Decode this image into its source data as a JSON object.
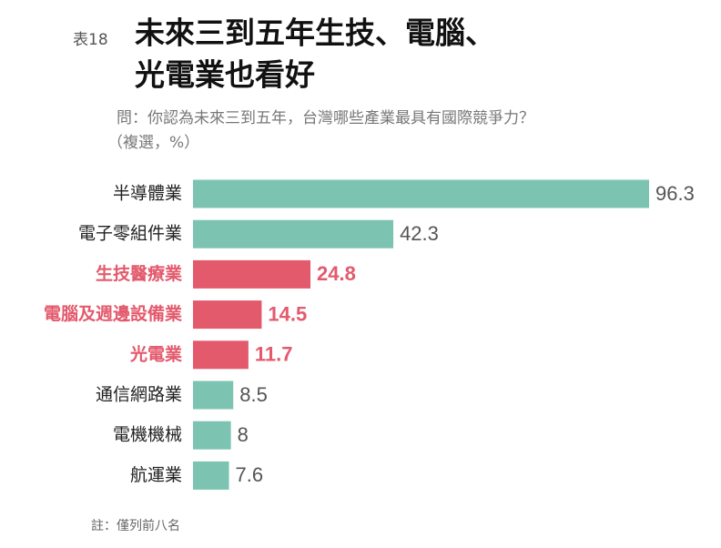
{
  "chart_data": {
    "type": "hbar",
    "label": "表18",
    "title": [
      "未來三到五年生技、電腦、",
      "光電業也看好"
    ],
    "subtitle": [
      "問：你認為未來三到五年，台灣哪些產業最具有國際競爭力？",
      "（複選，%）"
    ],
    "categories": [
      "半導體業",
      "電子零組件業",
      "生技醫療業",
      "電腦及週邊設備業",
      "光電業",
      "通信網路業",
      "電機機械",
      "航運業"
    ],
    "values": [
      96.3,
      42.3,
      24.8,
      14.5,
      11.7,
      8.5,
      8,
      7.6
    ],
    "highlight": [
      false,
      false,
      true,
      true,
      true,
      false,
      false,
      false
    ],
    "colors": {
      "default": "#7cc4b1",
      "highlight": "#e35a6d"
    },
    "note": "註：僅列前八名"
  }
}
